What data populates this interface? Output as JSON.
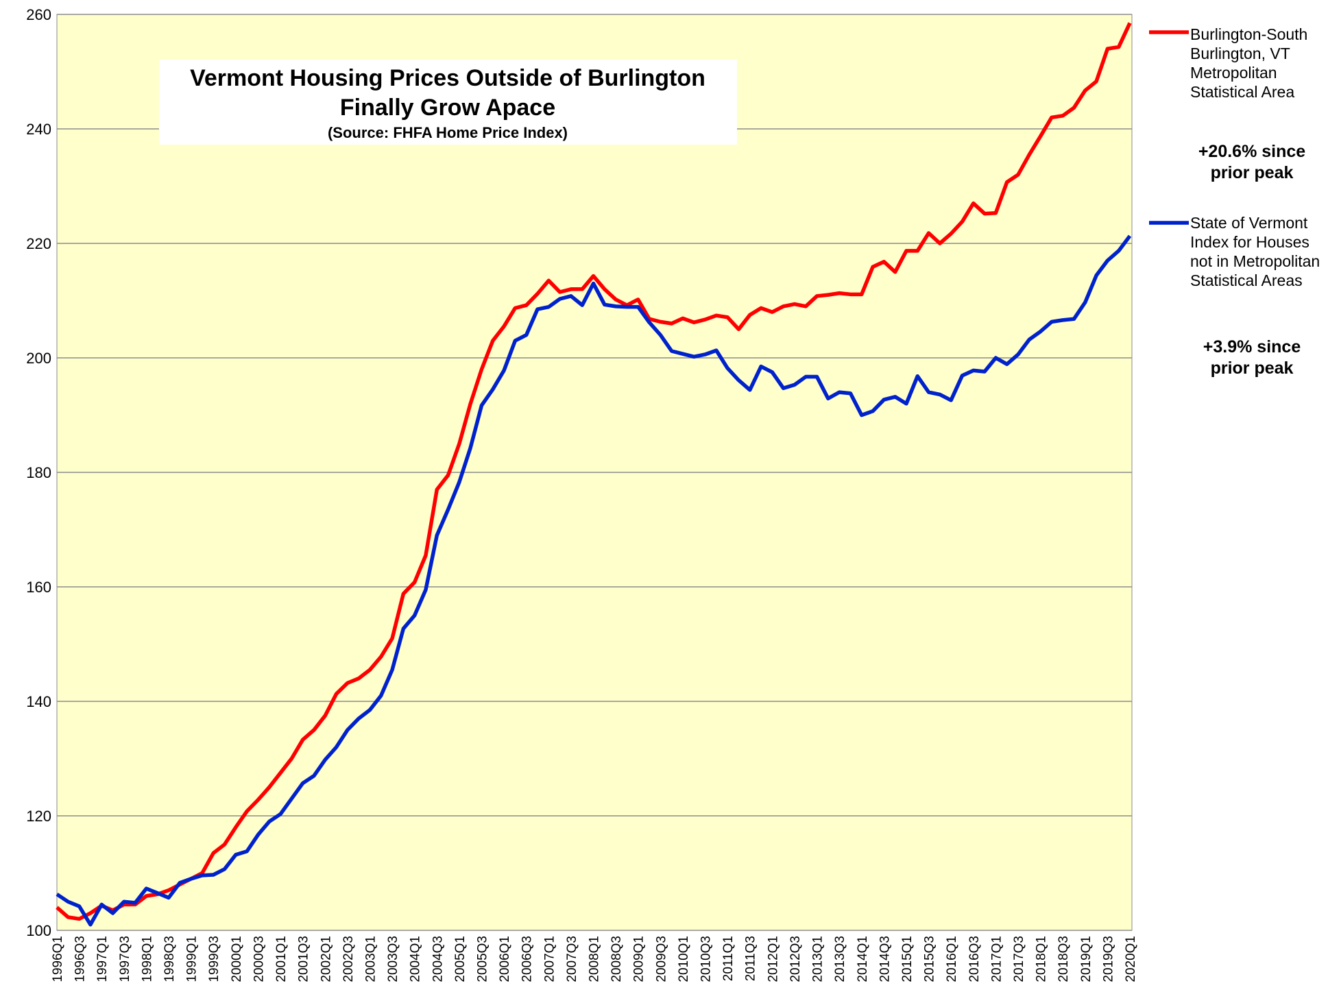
{
  "chart_data": {
    "type": "line",
    "title": [
      "Vermont Housing Prices Outside of Burlington",
      "Finally Grow Apace"
    ],
    "subtitle": "(Source:  FHFA Home Price Index)",
    "categories": [
      "1996Q1",
      null,
      "1996Q3",
      null,
      "1997Q1",
      null,
      "1997Q3",
      null,
      "1998Q1",
      null,
      "1998Q3",
      null,
      "1999Q1",
      null,
      "1999Q3",
      null,
      "2000Q1",
      null,
      "2000Q3",
      null,
      "2001Q1",
      null,
      "2001Q3",
      null,
      "2002Q1",
      null,
      "2002Q3",
      null,
      "2003Q1",
      null,
      "2003Q3",
      null,
      "2004Q1",
      null,
      "2004Q3",
      null,
      "2005Q1",
      null,
      "2005Q3",
      null,
      "2006Q1",
      null,
      "2006Q3",
      null,
      "2007Q1",
      null,
      "2007Q3",
      null,
      "2008Q1",
      null,
      "2008Q3",
      null,
      "2009Q1",
      null,
      "2009Q3",
      null,
      "2010Q1",
      null,
      "2010Q3",
      null,
      "2011Q1",
      null,
      "2011Q3",
      null,
      "2012Q1",
      null,
      "2012Q3",
      null,
      "2013Q1",
      null,
      "2013Q3",
      null,
      "2014Q1",
      null,
      "2014Q3",
      null,
      "2015Q1",
      null,
      "2015Q3",
      null,
      "2016Q1",
      null,
      "2016Q3",
      null,
      "2017Q1",
      null,
      "2017Q3",
      null,
      "2018Q1",
      null,
      "2018Q3",
      null,
      "2019Q1",
      null,
      "2019Q3",
      null,
      "2020Q1"
    ],
    "series": [
      {
        "name": "Burlington-South Burlington, VT Metropolitan Statistical Area",
        "color": "#ff0000",
        "values": [
          104,
          102.3,
          102,
          103,
          104.3,
          103.5,
          104.5,
          104.5,
          106,
          106.3,
          107,
          108,
          109,
          110,
          113.5,
          115,
          118,
          120.8,
          122.8,
          125,
          127.5,
          130,
          133.3,
          135,
          137.5,
          141.3,
          143.2,
          144,
          145.5,
          147.8,
          151,
          158.8,
          160.8,
          165.5,
          177,
          179.5,
          185,
          192,
          198,
          203,
          205.5,
          208.7,
          209.2,
          211.2,
          213.5,
          211.5,
          212,
          212,
          214.3,
          212,
          210.2,
          209.2,
          210.2,
          206.8,
          206.3,
          206,
          206.9,
          206.2,
          206.7,
          207.4,
          207.1,
          205,
          207.5,
          208.7,
          208,
          209,
          209.4,
          209,
          210.8,
          211,
          211.3,
          211.1,
          211.1,
          215.9,
          216.8,
          215,
          218.7,
          218.7,
          221.8,
          220,
          221.7,
          223.8,
          227,
          225.2,
          225.3,
          230.7,
          232,
          235.5,
          238.7,
          242,
          242.3,
          243.7,
          246.7,
          248.3,
          254,
          254.3,
          258.5
        ]
      },
      {
        "name": "State of Vermont Index for Houses not in Metropolitan Statistical Areas",
        "color": "#0022cc",
        "values": [
          106.3,
          105,
          104.2,
          101,
          104.5,
          103,
          105,
          104.8,
          107.3,
          106.5,
          105.7,
          108.3,
          109,
          109.6,
          109.7,
          110.7,
          113.2,
          113.8,
          116.7,
          119,
          120.3,
          123,
          125.7,
          127,
          129.8,
          132,
          135,
          137,
          138.5,
          141,
          145.5,
          152.7,
          155,
          159.5,
          169,
          173.5,
          178.3,
          184.3,
          191.7,
          194.5,
          197.8,
          203,
          204,
          208.5,
          208.9,
          210.3,
          210.8,
          209.2,
          213,
          209.3,
          209,
          208.9,
          208.9,
          206.2,
          204,
          201.2,
          200.7,
          200.2,
          200.6,
          201.3,
          198.2,
          196.1,
          194.4,
          198.5,
          197.5,
          194.7,
          195.3,
          196.7,
          196.7,
          192.9,
          194,
          193.8,
          190,
          190.7,
          192.7,
          193.2,
          192,
          196.8,
          194,
          193.6,
          192.6,
          196.9,
          197.8,
          197.6,
          200,
          198.9,
          200.6,
          203.2,
          204.6,
          206.3,
          206.6,
          206.8,
          209.7,
          214.4,
          217,
          218.7,
          221.3
        ]
      }
    ],
    "annotations": [
      "+20.6% since prior peak",
      "+3.9% since prior peak"
    ],
    "ylim": [
      100,
      260
    ],
    "yticks": [
      100,
      120,
      140,
      160,
      180,
      200,
      220,
      240,
      260
    ],
    "grid": true,
    "background": "#ffffcc"
  }
}
